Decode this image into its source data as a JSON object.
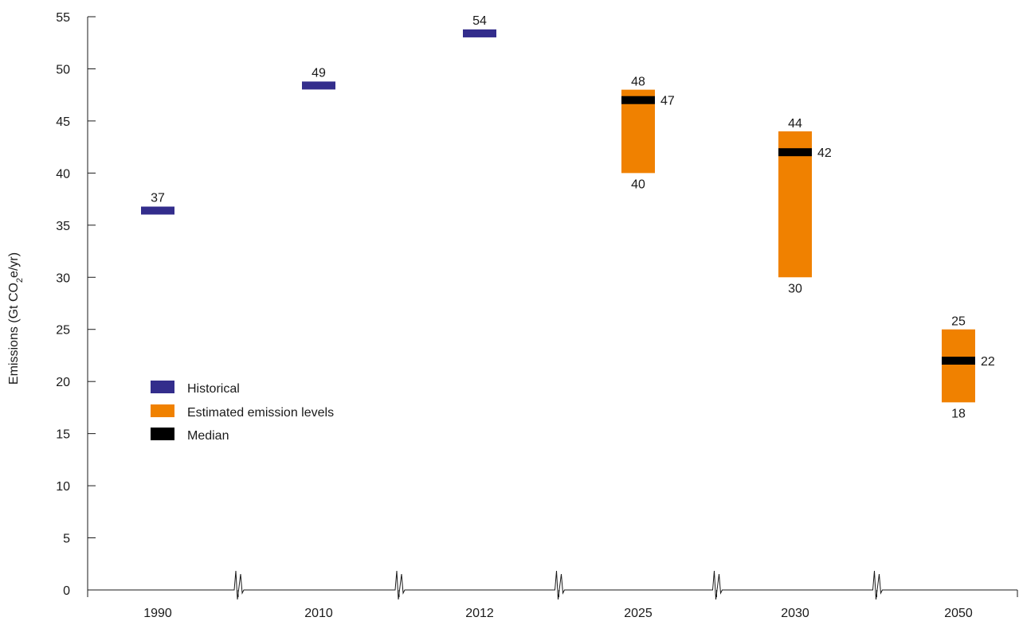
{
  "chart_data": {
    "type": "bar",
    "ylabel_main": "Emissions (Gt CO",
    "ylabel_sub": "2",
    "ylabel_tail": "e/yr)",
    "ylim": [
      0,
      55
    ],
    "yticks": [
      0,
      5,
      10,
      15,
      20,
      25,
      30,
      35,
      40,
      45,
      50,
      55
    ],
    "categories": [
      "1990",
      "2010",
      "2012",
      "2025",
      "2030",
      "2050"
    ],
    "historical": [
      {
        "x": "1990",
        "value": 37
      },
      {
        "x": "2010",
        "value": 49
      },
      {
        "x": "2012",
        "value": 54
      }
    ],
    "estimates": [
      {
        "x": "2025",
        "low": 40,
        "high": 48,
        "median": 47
      },
      {
        "x": "2030",
        "low": 30,
        "high": 44,
        "median": 42
      },
      {
        "x": "2050",
        "low": 18,
        "high": 25,
        "median": 22
      }
    ],
    "axis_breaks": true,
    "legend": {
      "position": "center-left",
      "items": [
        {
          "label": "Historical",
          "color": "#332d8c"
        },
        {
          "label": "Estimated emission levels",
          "color": "#f08100"
        },
        {
          "label": "Median",
          "color": "#000000"
        }
      ]
    },
    "colors": {
      "historical": "#332d8c",
      "estimate": "#f08100",
      "median": "#000000",
      "axis": "#1a1a1a"
    }
  }
}
